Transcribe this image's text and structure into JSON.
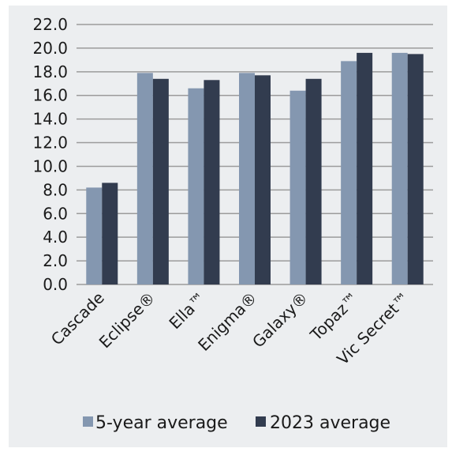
{
  "chart_data": {
    "type": "bar",
    "categories": [
      "Cascade",
      "Eclipse®",
      "Ella™",
      "Enigma®",
      "Galaxy®",
      "Topaz™",
      "Vic Secret™"
    ],
    "series": [
      {
        "name": "5-year average",
        "color": "#8497b0",
        "values": [
          8.2,
          17.9,
          16.6,
          17.9,
          16.4,
          18.9,
          19.6
        ]
      },
      {
        "name": "2023 average",
        "color": "#323c4f",
        "values": [
          8.6,
          17.4,
          17.3,
          17.7,
          17.4,
          19.6,
          19.5
        ]
      }
    ],
    "yticks": [
      "0.0",
      "2.0",
      "4.0",
      "6.0",
      "8.0",
      "10.0",
      "12.0",
      "14.0",
      "16.0",
      "18.0",
      "20.0",
      "22.0"
    ],
    "ylim": [
      0,
      22
    ],
    "grid": true,
    "legend_position": "bottom",
    "background": "#eceef0",
    "gridline_color": "#9b9b9b"
  }
}
